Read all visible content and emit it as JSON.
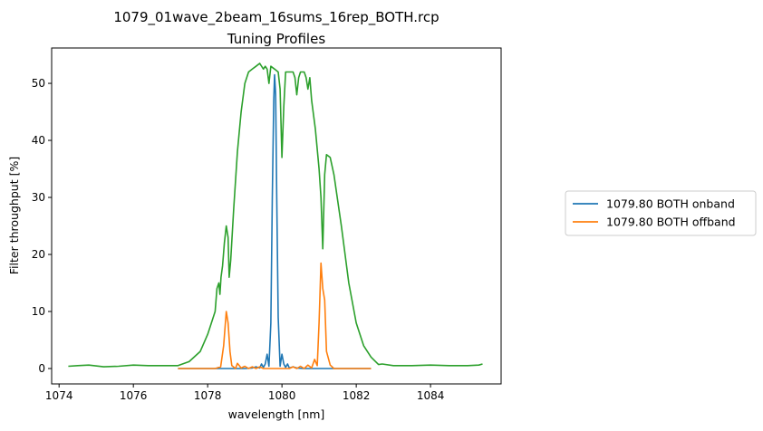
{
  "chart_data": {
    "type": "line",
    "title": "1079_01wave_2beam_16sums_16rep_BOTH.rcp",
    "subtitle": "Tuning Profiles",
    "xlabel": "wavelength [nm]",
    "ylabel": "Filter throughput [%]",
    "xlim": [
      1073.8,
      1085.9
    ],
    "ylim": [
      -2.7,
      56.2
    ],
    "xticks": [
      1074,
      1076,
      1078,
      1080,
      1082,
      1084
    ],
    "yticks": [
      0,
      10,
      20,
      30,
      40,
      50
    ],
    "grid": false,
    "legend_position": "right, outside plot",
    "series": [
      {
        "name": "1079.80 BOTH onband",
        "color": "#1f77b4",
        "points": [
          [
            1077.2,
            0
          ],
          [
            1079.0,
            0
          ],
          [
            1079.2,
            0.1
          ],
          [
            1079.3,
            0.3
          ],
          [
            1079.4,
            0.1
          ],
          [
            1079.45,
            0.8
          ],
          [
            1079.5,
            0.2
          ],
          [
            1079.55,
            0.8
          ],
          [
            1079.6,
            2.5
          ],
          [
            1079.65,
            0.4
          ],
          [
            1079.7,
            8
          ],
          [
            1079.74,
            30
          ],
          [
            1079.78,
            47
          ],
          [
            1079.8,
            51.5
          ],
          [
            1079.83,
            48
          ],
          [
            1079.86,
            30
          ],
          [
            1079.9,
            9
          ],
          [
            1079.95,
            0.4
          ],
          [
            1080.0,
            2.5
          ],
          [
            1080.05,
            0.8
          ],
          [
            1080.1,
            0.2
          ],
          [
            1080.15,
            0.8
          ],
          [
            1080.2,
            0.1
          ],
          [
            1080.3,
            0.3
          ],
          [
            1080.4,
            0.1
          ],
          [
            1080.6,
            0
          ],
          [
            1082.4,
            0
          ]
        ]
      },
      {
        "name": "1079.80 BOTH offband",
        "color": "#ff7f0e",
        "points": [
          [
            1077.2,
            0
          ],
          [
            1078.2,
            0
          ],
          [
            1078.35,
            0.3
          ],
          [
            1078.43,
            4
          ],
          [
            1078.5,
            10
          ],
          [
            1078.55,
            8
          ],
          [
            1078.6,
            3
          ],
          [
            1078.65,
            0.5
          ],
          [
            1078.75,
            0
          ],
          [
            1078.8,
            0.9
          ],
          [
            1078.9,
            0.1
          ],
          [
            1079.0,
            0.4
          ],
          [
            1079.1,
            0
          ],
          [
            1079.2,
            0.3
          ],
          [
            1079.3,
            0
          ],
          [
            1079.4,
            0.3
          ],
          [
            1079.5,
            0
          ],
          [
            1080.2,
            0
          ],
          [
            1080.3,
            0.3
          ],
          [
            1080.4,
            0
          ],
          [
            1080.5,
            0.4
          ],
          [
            1080.6,
            0
          ],
          [
            1080.7,
            0.6
          ],
          [
            1080.8,
            0.1
          ],
          [
            1080.88,
            1.6
          ],
          [
            1080.95,
            0.5
          ],
          [
            1081.0,
            8
          ],
          [
            1081.05,
            18.5
          ],
          [
            1081.1,
            14
          ],
          [
            1081.15,
            12
          ],
          [
            1081.2,
            3
          ],
          [
            1081.3,
            0.6
          ],
          [
            1081.4,
            0
          ],
          [
            1082.4,
            0
          ]
        ]
      },
      {
        "name": "",
        "color": "#2ca02c",
        "points": [
          [
            1074.25,
            0.4
          ],
          [
            1074.5,
            0.5
          ],
          [
            1074.8,
            0.6
          ],
          [
            1075.2,
            0.3
          ],
          [
            1075.6,
            0.4
          ],
          [
            1076.0,
            0.6
          ],
          [
            1076.4,
            0.5
          ],
          [
            1076.8,
            0.5
          ],
          [
            1077.2,
            0.5
          ],
          [
            1077.5,
            1.2
          ],
          [
            1077.8,
            3
          ],
          [
            1078.0,
            6
          ],
          [
            1078.1,
            8
          ],
          [
            1078.2,
            10
          ],
          [
            1078.25,
            14
          ],
          [
            1078.3,
            15
          ],
          [
            1078.33,
            13
          ],
          [
            1078.36,
            16
          ],
          [
            1078.4,
            18
          ],
          [
            1078.45,
            22
          ],
          [
            1078.5,
            25
          ],
          [
            1078.55,
            23
          ],
          [
            1078.58,
            16
          ],
          [
            1078.62,
            19
          ],
          [
            1078.7,
            28
          ],
          [
            1078.8,
            38
          ],
          [
            1078.9,
            45
          ],
          [
            1079.0,
            50
          ],
          [
            1079.1,
            52
          ],
          [
            1079.2,
            52.5
          ],
          [
            1079.3,
            53
          ],
          [
            1079.4,
            53.5
          ],
          [
            1079.5,
            52.5
          ],
          [
            1079.55,
            53
          ],
          [
            1079.6,
            52.5
          ],
          [
            1079.65,
            50
          ],
          [
            1079.7,
            53
          ],
          [
            1079.8,
            52.5
          ],
          [
            1079.9,
            52
          ],
          [
            1079.95,
            49
          ],
          [
            1080.0,
            37
          ],
          [
            1080.05,
            46
          ],
          [
            1080.1,
            52
          ],
          [
            1080.2,
            52
          ],
          [
            1080.3,
            52
          ],
          [
            1080.35,
            51
          ],
          [
            1080.4,
            48
          ],
          [
            1080.45,
            51
          ],
          [
            1080.5,
            52
          ],
          [
            1080.6,
            52
          ],
          [
            1080.65,
            51
          ],
          [
            1080.7,
            49
          ],
          [
            1080.75,
            51
          ],
          [
            1080.8,
            47
          ],
          [
            1080.9,
            42
          ],
          [
            1081.0,
            35
          ],
          [
            1081.05,
            30
          ],
          [
            1081.1,
            21
          ],
          [
            1081.15,
            34
          ],
          [
            1081.2,
            37.5
          ],
          [
            1081.3,
            37
          ],
          [
            1081.4,
            34
          ],
          [
            1081.6,
            25
          ],
          [
            1081.8,
            15
          ],
          [
            1082.0,
            8
          ],
          [
            1082.2,
            4
          ],
          [
            1082.4,
            2
          ],
          [
            1082.6,
            0.7
          ],
          [
            1082.7,
            0.8
          ],
          [
            1083.0,
            0.5
          ],
          [
            1083.5,
            0.5
          ],
          [
            1084.0,
            0.6
          ],
          [
            1084.5,
            0.5
          ],
          [
            1085.0,
            0.5
          ],
          [
            1085.3,
            0.6
          ],
          [
            1085.4,
            0.8
          ]
        ]
      }
    ]
  }
}
